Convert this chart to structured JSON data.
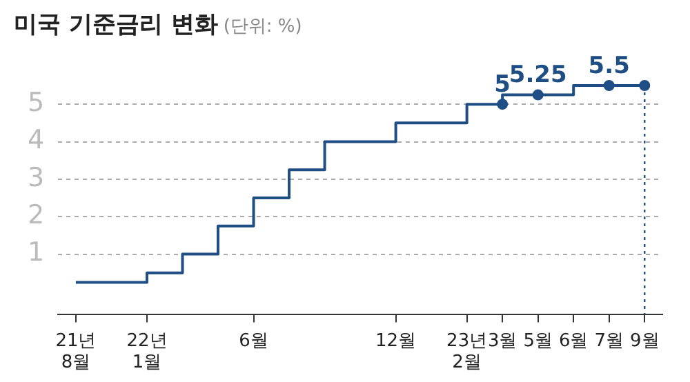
{
  "chart_data": {
    "type": "step",
    "title": "미국 기준금리 변화",
    "subtitle": "(단위: %)",
    "categories": [
      "21년\n8월",
      null,
      "22년\n1월",
      null,
      null,
      "6월",
      null,
      null,
      null,
      "12월",
      null,
      "23년\n2월",
      "3월",
      "5월",
      "6월",
      "7월",
      "9월"
    ],
    "series": [
      {
        "values": [
          0.25,
          0.25,
          0.25,
          0.5,
          1,
          1.75,
          2.5,
          3.25,
          4,
          4,
          4.5,
          4.5,
          5,
          5.25,
          5.25,
          5.5,
          5.5
        ],
        "color": "#1f4e85",
        "marker": "none"
      },
      {
        "type": "scatter",
        "values": [
          null,
          null,
          null,
          null,
          null,
          null,
          null,
          null,
          null,
          null,
          null,
          null,
          5,
          5.25,
          null,
          5.5,
          5.5
        ],
        "value_labels": [
          null,
          null,
          null,
          null,
          null,
          null,
          null,
          null,
          null,
          null,
          null,
          null,
          "5",
          "5.25",
          null,
          "5.5",
          null
        ],
        "color": "#1f4e85",
        "marker": "circle"
      }
    ],
    "ylim": [
      -0.6,
      5.5
    ],
    "yticks": [
      1,
      2,
      3,
      4,
      5
    ],
    "ref_lines": [
      {
        "axis": "x",
        "value": "9월",
        "color": "#1f4e85",
        "line_style": "dotted"
      }
    ],
    "grid": "y",
    "legend": false
  }
}
